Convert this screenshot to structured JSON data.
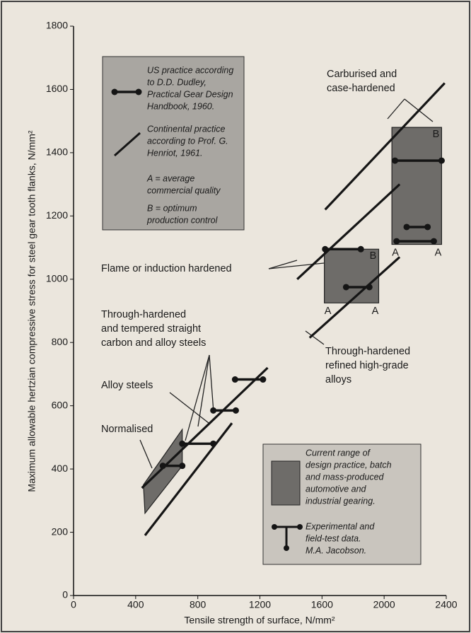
{
  "chart_data": {
    "type": "line",
    "x_label": "Tensile strength of surface, N/mm²",
    "y_label": "Maximum allowable hertzian compressive stress for steel gear tooth flanks, N/mm²",
    "xlim": [
      0,
      2400
    ],
    "ylim": [
      0,
      1800
    ],
    "xticks": [
      0,
      400,
      800,
      1200,
      1600,
      2000,
      2400
    ],
    "yticks": [
      0,
      200,
      400,
      600,
      800,
      1000,
      1200,
      1400,
      1600,
      1800
    ],
    "line_color": "#151515",
    "region_color": "#6e6c69",
    "marker_color": "#151515",
    "lines": [
      {
        "x": [
          460,
          1020
        ],
        "y": [
          190,
          545
        ]
      },
      {
        "x": [
          440,
          1250
        ],
        "y": [
          340,
          720
        ]
      },
      {
        "x": [
          1520,
          2100
        ],
        "y": [
          815,
          1070
        ]
      },
      {
        "x": [
          1440,
          2100
        ],
        "y": [
          1000,
          1300
        ]
      },
      {
        "x": [
          1620,
          2390
        ],
        "y": [
          1220,
          1620
        ]
      }
    ],
    "regions": [
      {
        "x": [
          2050,
          2370,
          2370,
          2050
        ],
        "y": [
          1110,
          1110,
          1480,
          1480
        ],
        "labels": [
          "B",
          "A",
          "A"
        ]
      },
      {
        "x": [
          1615,
          1965,
          1965,
          1615
        ],
        "y": [
          925,
          925,
          1095,
          1095
        ],
        "labels": [
          "B",
          "A",
          "A"
        ]
      },
      {
        "x": [
          450,
          700,
          700,
          460
        ],
        "y": [
          350,
          525,
          410,
          260
        ]
      }
    ],
    "dumbbells": [
      {
        "x": [
          2070,
          2370
        ],
        "y": 1375
      },
      {
        "x": [
          2145,
          2280
        ],
        "y": 1165
      },
      {
        "x": [
          2080,
          2320
        ],
        "y": 1120
      },
      {
        "x": [
          1620,
          1850
        ],
        "y": 1095
      },
      {
        "x": [
          1755,
          1905
        ],
        "y": 975
      },
      {
        "x": [
          1040,
          1220
        ],
        "y": 683
      },
      {
        "x": [
          900,
          1045
        ],
        "y": 585
      },
      {
        "x": [
          700,
          900
        ],
        "y": 480
      },
      {
        "x": [
          575,
          700
        ],
        "y": 410
      }
    ],
    "annotations": [
      [
        "Carburised and",
        "case-hardened"
      ],
      [
        "Flame or induction hardened"
      ],
      [
        "Through-hardened",
        "and tempered straight",
        "carbon and alloy steels"
      ],
      [
        "Alloy steels"
      ],
      [
        "Normalised"
      ],
      [
        "Through-hardened",
        "refined high-grade",
        "alloys"
      ]
    ],
    "legend_top": [
      [
        "US practice according",
        "to D.D. Dudley,",
        "Practical Gear Design",
        "Handbook, 1960."
      ],
      [
        "Continental practice",
        "according to Prof. G.",
        "Henriot, 1961."
      ],
      [
        "A = average",
        "commercial quality"
      ],
      [
        "B = optimum",
        "production control"
      ]
    ],
    "legend_bottom": [
      [
        "Current range of",
        "design practice, batch",
        "and mass-produced",
        "automotive and",
        "industrial gearing."
      ],
      [
        "Experimental and",
        "field-test data.",
        "M.A. Jacobson."
      ]
    ]
  }
}
